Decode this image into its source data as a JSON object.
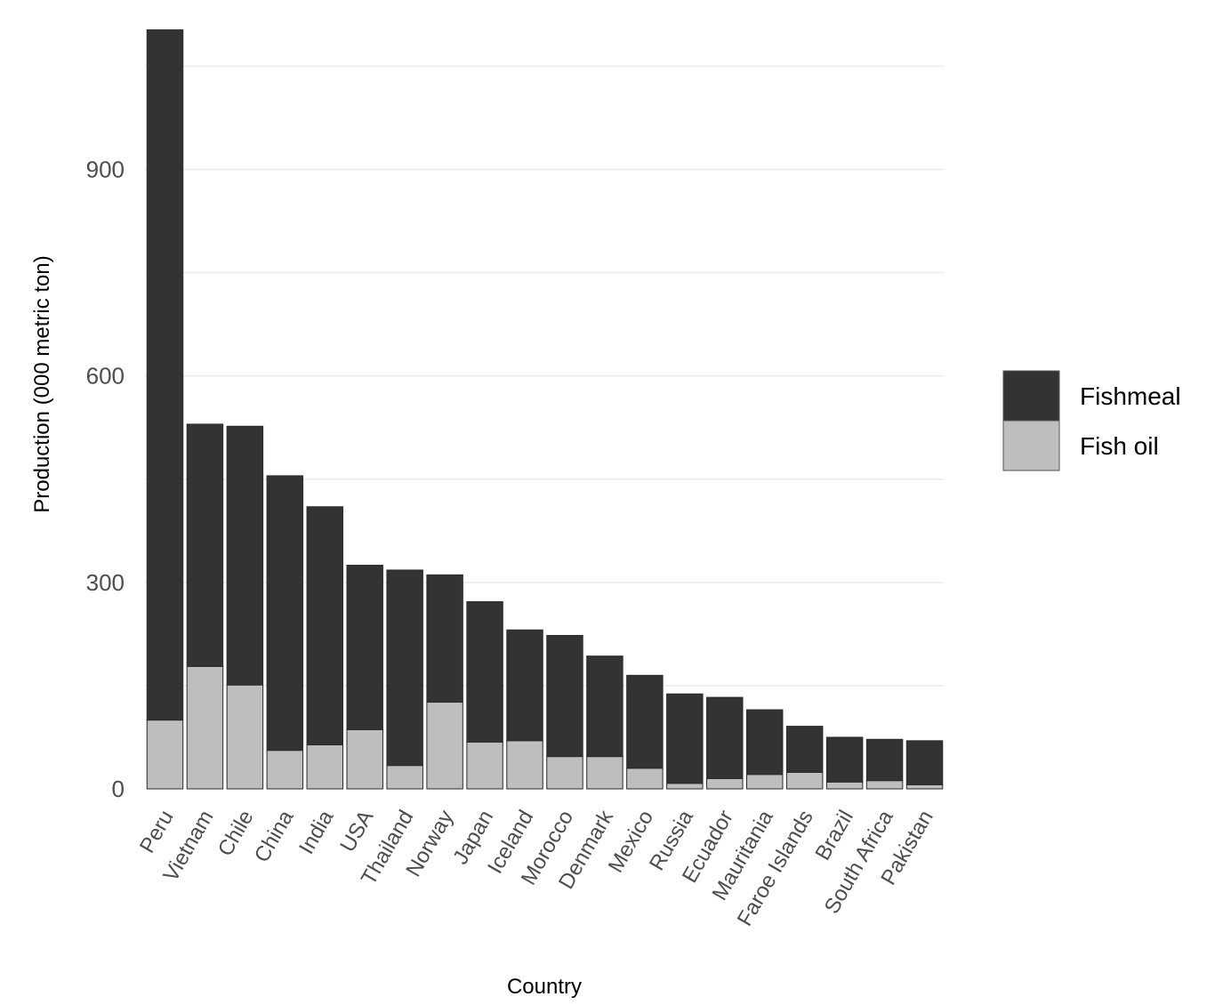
{
  "chart_data": {
    "type": "bar",
    "stacked": true,
    "title": "",
    "xlabel": "Country",
    "ylabel": "Production (000 metric ton)",
    "ylim": [
      0,
      1105
    ],
    "yticks": [
      0,
      300,
      600,
      900
    ],
    "grid": "horizontal",
    "legend_position": "right",
    "categories": [
      "Peru",
      "Vietnam",
      "Chile",
      "China",
      "India",
      "USA",
      "Thailand",
      "Norway",
      "Japan",
      "Iceland",
      "Morocco",
      "Denmark",
      "Mexico",
      "Russia",
      "Ecuador",
      "Mauritania",
      "Faroe Islands",
      "Brazil",
      "South Africa",
      "Pakistan"
    ],
    "series": [
      {
        "name": "Fish oil",
        "color": "#bebebe",
        "values": [
          100,
          178,
          151,
          56,
          64,
          86,
          34,
          126,
          68,
          70,
          47,
          47,
          30,
          8,
          15,
          21,
          24,
          10,
          12,
          6
        ]
      },
      {
        "name": "Fishmeal",
        "color": "#333333",
        "values": [
          1003,
          352,
          376,
          399,
          346,
          239,
          284,
          185,
          204,
          161,
          176,
          146,
          135,
          130,
          118,
          94,
          67,
          65,
          60,
          64
        ]
      }
    ],
    "legend_order": [
      "Fishmeal",
      "Fish oil"
    ]
  }
}
